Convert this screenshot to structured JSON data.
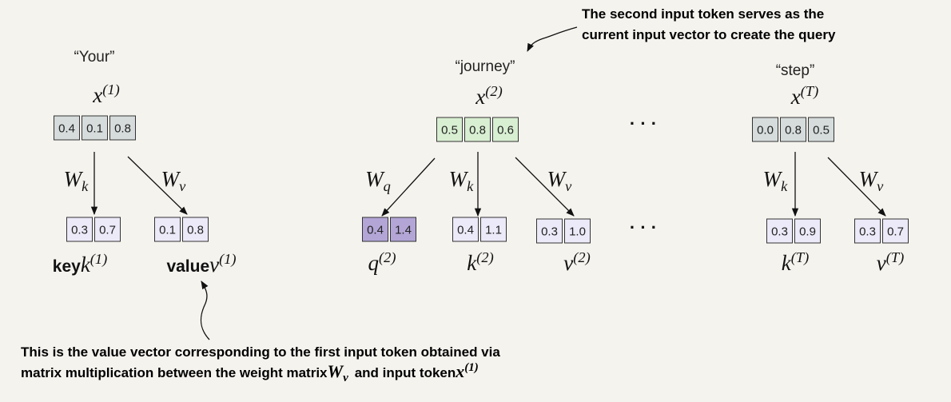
{
  "annotations": {
    "top": [
      "The second input token serves as the",
      "current input vector to create the query"
    ],
    "bottom": {
      "line1": "This is the value vector corresponding to the first input token obtained via",
      "line2": [
        "matrix multiplication between the weight matrix",
        {
          "base": "W",
          "sub": "v"
        },
        "and input token",
        {
          "base": "x",
          "sup": "(1)"
        }
      ]
    }
  },
  "ellipses": [
    "· · ·",
    "· · ·"
  ],
  "tokens": [
    {
      "word": "“Your”",
      "input": {
        "base": "x",
        "sup": "(1)"
      },
      "vector": [
        "0.4",
        "0.1",
        "0.8"
      ],
      "outputs": [
        {
          "weight": {
            "base": "W",
            "sub": "k"
          },
          "vector": [
            "0.3",
            "0.7"
          ],
          "prefix": "key",
          "label": {
            "base": "k",
            "sup": "(1)"
          }
        },
        {
          "weight": {
            "base": "W",
            "sub": "v"
          },
          "vector": [
            "0.1",
            "0.8"
          ],
          "prefix": "value",
          "label": {
            "base": "v",
            "sup": "(1)"
          }
        }
      ]
    },
    {
      "word": "“journey”",
      "input": {
        "base": "x",
        "sup": "(2)"
      },
      "vector": [
        "0.5",
        "0.8",
        "0.6"
      ],
      "outputs": [
        {
          "weight": {
            "base": "W",
            "sub": "q"
          },
          "vector": [
            "0.4",
            "1.4"
          ],
          "label": {
            "base": "q",
            "sup": "(2)"
          }
        },
        {
          "weight": {
            "base": "W",
            "sub": "k"
          },
          "vector": [
            "0.4",
            "1.1"
          ],
          "label": {
            "base": "k",
            "sup": "(2)"
          }
        },
        {
          "weight": {
            "base": "W",
            "sub": "v"
          },
          "vector": [
            "0.3",
            "1.0"
          ],
          "label": {
            "base": "v",
            "sup": "(2)"
          }
        }
      ]
    },
    {
      "word": "“step”",
      "input": {
        "base": "x",
        "sup": "(T)"
      },
      "vector": [
        "0.0",
        "0.8",
        "0.5"
      ],
      "outputs": [
        {
          "weight": {
            "base": "W",
            "sub": "k"
          },
          "vector": [
            "0.3",
            "0.9"
          ],
          "label": {
            "base": "k",
            "sup": "(T)"
          }
        },
        {
          "weight": {
            "base": "W",
            "sub": "v"
          },
          "vector": [
            "0.3",
            "0.7"
          ],
          "label": {
            "base": "v",
            "sup": "(T)"
          }
        }
      ]
    }
  ]
}
